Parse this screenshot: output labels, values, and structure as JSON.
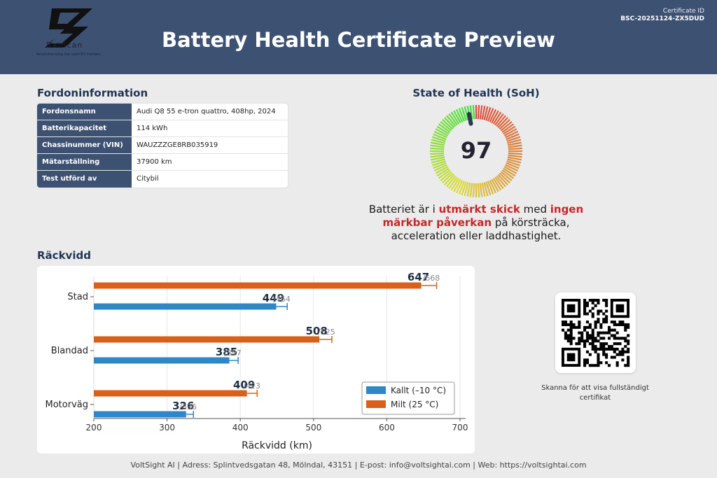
{
  "header": {
    "logo_name": "BatScan",
    "logo_tagline": "Revolutionizing the used EV markets",
    "title": "Battery Health Certificate Preview",
    "certificate_label": "Certificate ID",
    "certificate_id": "BSC-20251124-ZX5DUD",
    "background_color": "#3d5273"
  },
  "vehicle": {
    "section_title": "Fordoninformation",
    "rows": [
      {
        "label": "Fordonsnamn",
        "value": "Audi Q8 55 e-tron quattro, 408hp, 2024"
      },
      {
        "label": "Batterikapacitet",
        "value": "114 kWh"
      },
      {
        "label": "Chassinummer (VIN)",
        "value": "WAUZZZGE8RB035919"
      },
      {
        "label": "Mätarställning",
        "value": "37900 km"
      },
      {
        "label": "Test utförd av",
        "value": "Citybil"
      }
    ]
  },
  "soh": {
    "section_title": "State of Health (SoH)",
    "value": "97",
    "gauge_fraction": 0.97,
    "text_parts": [
      "Batteriet är i ",
      "utmärkt skick",
      " med ",
      "ingen märkbar påverkan",
      " på körsträcka, acceleration eller laddhastighet."
    ]
  },
  "range": {
    "section_title": "Räckvidd"
  },
  "chart_data": {
    "type": "bar",
    "orientation": "horizontal",
    "categories": [
      "Stad",
      "Blandad",
      "Motorväg"
    ],
    "series": [
      {
        "name": "Milt (25 °C)",
        "color": "#d9601a",
        "values": [
          647,
          508,
          409
        ],
        "max_values": [
          668,
          525,
          423
        ],
        "max_labels": [
          "/668",
          "/525",
          "/423"
        ]
      },
      {
        "name": "Kallt (–10 °C)",
        "color": "#2f86c8",
        "values": [
          449,
          385,
          326
        ],
        "max_values": [
          464,
          397,
          336
        ],
        "max_labels": [
          "/464",
          "/397",
          "/336"
        ]
      }
    ],
    "xlabel": "Räckvidd (km)",
    "xlim": [
      200,
      700
    ],
    "xticks": [
      200,
      300,
      400,
      500,
      600,
      700
    ],
    "legend_position": "bottom-right",
    "grid": true
  },
  "qr": {
    "caption": "Skanna för att visa fullständigt certifikat"
  },
  "footer": {
    "text": "VoltSight AI | Adress: Splintvedsgatan 48, Mölndal, 43151 | E-post: info@voltsightai.com | Web: https://voltsightai.com"
  }
}
